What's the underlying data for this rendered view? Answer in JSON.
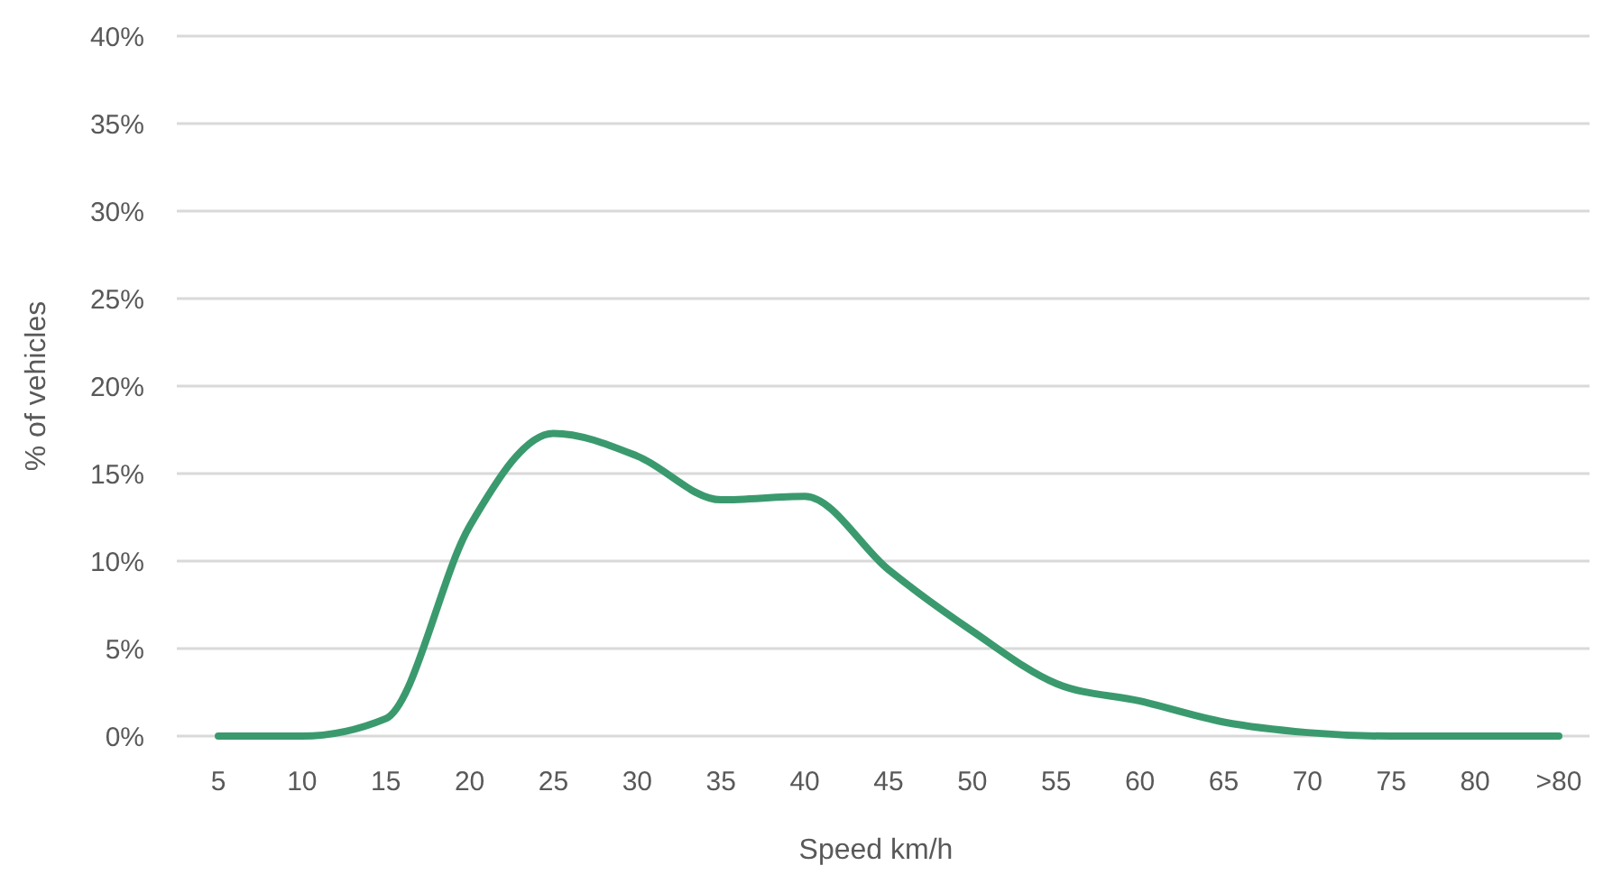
{
  "chart_data": {
    "type": "line",
    "xlabel": "Speed km/h",
    "ylabel": "% of vehicles",
    "categories": [
      "5",
      "10",
      "15",
      "20",
      "25",
      "30",
      "35",
      "40",
      "45",
      "50",
      "55",
      "60",
      "65",
      "70",
      "75",
      "80",
      ">80"
    ],
    "series": [
      {
        "color": "#3a9a6e",
        "values": [
          0,
          0,
          1,
          12,
          17.3,
          16,
          13.5,
          13.7,
          9.5,
          6,
          3,
          2,
          0.8,
          0.2,
          0,
          0,
          0
        ]
      }
    ],
    "ylim": [
      0,
      40
    ],
    "yticks": [
      {
        "value": 0,
        "label": "0%"
      },
      {
        "value": 5,
        "label": "5%"
      },
      {
        "value": 10,
        "label": "10%"
      },
      {
        "value": 15,
        "label": "15%"
      },
      {
        "value": 20,
        "label": "20%"
      },
      {
        "value": 25,
        "label": "25%"
      },
      {
        "value": 30,
        "label": "30%"
      },
      {
        "value": 35,
        "label": "35%"
      },
      {
        "value": 40,
        "label": "40%"
      }
    ],
    "grid": "y",
    "marker": "none",
    "line_style": "solid"
  }
}
